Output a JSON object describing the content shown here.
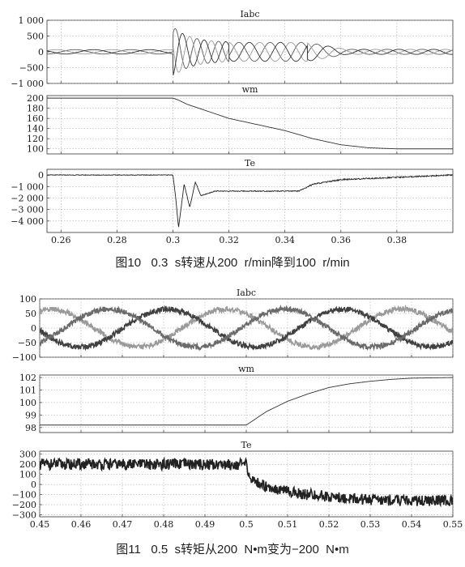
{
  "figures": [
    {
      "caption": "图10   0.3  s转速从200  r/min降到100  r/min",
      "x_ticks": [
        "0.26",
        "0.28",
        "0.3",
        "0.32",
        "0.34",
        "0.36",
        "0.38"
      ],
      "panels": [
        {
          "title": "Iabc",
          "y_ticks": [
            "1 000",
            "500",
            "0",
            "−500",
            "−1 000"
          ]
        },
        {
          "title": "wm",
          "y_ticks": [
            "200",
            "180",
            "160",
            "140",
            "120",
            "100"
          ]
        },
        {
          "title": "Te",
          "y_ticks": [
            "0",
            "−1 000",
            "−2 000",
            "−3 000",
            "−4 000"
          ]
        }
      ]
    },
    {
      "caption": "图11   0.5  s转矩从200  N•m变为−200  N•m",
      "x_ticks": [
        "0.45",
        "0.46",
        "0.47",
        "0.48",
        "0.49",
        "0.5",
        "0.51",
        "0.52",
        "0.53",
        "0.54",
        "0.55"
      ],
      "panels": [
        {
          "title": "Iabc",
          "y_ticks": [
            "100",
            "50",
            "0",
            "−50",
            "−100"
          ]
        },
        {
          "title": "wm",
          "y_ticks": [
            "102",
            "101",
            "100",
            "99",
            "98"
          ]
        },
        {
          "title": "Te",
          "y_ticks": [
            "300",
            "200",
            "100",
            "0",
            "−100",
            "−200",
            "−300"
          ]
        }
      ]
    }
  ],
  "chart_data": [
    {
      "type": "line",
      "title": "Iabc",
      "xlim": [
        0.255,
        0.4
      ],
      "ylim": [
        -1000,
        1000
      ],
      "grid": true,
      "series": [
        {
          "x": [
            0.255,
            0.3,
            0.302,
            0.304,
            0.308,
            0.315,
            0.33,
            0.35,
            0.36,
            0.4
          ],
          "y": [
            100,
            100,
            900,
            -500,
            600,
            400,
            300,
            300,
            100,
            100
          ]
        },
        {
          "x": [
            0.255,
            0.3,
            0.302,
            0.304,
            0.308,
            0.315,
            0.33,
            0.35,
            0.36,
            0.4
          ],
          "y": [
            -100,
            -100,
            -600,
            700,
            -400,
            300,
            300,
            300,
            100,
            100
          ]
        },
        {
          "x": [
            0.255,
            0.3,
            0.302,
            0.304,
            0.308,
            0.315,
            0.33,
            0.35,
            0.36,
            0.4
          ],
          "y": [
            50,
            50,
            -400,
            -300,
            -300,
            -300,
            -300,
            -300,
            -100,
            -100
          ]
        }
      ],
      "colors": [
        "#5a5a5a",
        "#9a9a9a",
        "#303030"
      ]
    },
    {
      "type": "line",
      "title": "wm",
      "xlim": [
        0.255,
        0.4
      ],
      "ylim": [
        90,
        205
      ],
      "grid": true,
      "series": [
        {
          "x": [
            0.255,
            0.3,
            0.302,
            0.305,
            0.32,
            0.34,
            0.35,
            0.36,
            0.37,
            0.38,
            0.39,
            0.4
          ],
          "y": [
            200,
            200,
            196,
            188,
            160,
            136,
            120,
            108,
            102,
            100,
            100,
            100
          ]
        }
      ],
      "colors": [
        "#333333"
      ]
    },
    {
      "type": "line",
      "title": "Te",
      "xlim": [
        0.255,
        0.4
      ],
      "ylim": [
        -5000,
        500
      ],
      "grid": true,
      "series": [
        {
          "x": [
            0.255,
            0.3,
            0.301,
            0.302,
            0.304,
            0.306,
            0.308,
            0.31,
            0.315,
            0.345,
            0.35,
            0.36,
            0.38,
            0.4
          ],
          "y": [
            0,
            0,
            -2000,
            -4600,
            -800,
            -2800,
            -600,
            -1800,
            -1400,
            -1400,
            -800,
            -400,
            -200,
            0
          ]
        }
      ],
      "colors": [
        "#222222"
      ]
    },
    {
      "type": "line",
      "title": "Iabc",
      "xlim": [
        0.45,
        0.55
      ],
      "ylim": [
        -100,
        100
      ],
      "grid": true,
      "series": [
        {
          "x": [
            0.45,
            0.46,
            0.47,
            0.48,
            0.49,
            0.5,
            0.51,
            0.52,
            0.53,
            0.54,
            0.55
          ],
          "y": [
            70,
            20,
            -50,
            -60,
            0,
            60,
            40,
            -30,
            -70,
            -10,
            60
          ]
        },
        {
          "x": [
            0.45,
            0.46,
            0.47,
            0.48,
            0.49,
            0.5,
            0.51,
            0.52,
            0.53,
            0.54,
            0.55
          ],
          "y": [
            -40,
            -70,
            -10,
            50,
            70,
            10,
            -60,
            -60,
            20,
            70,
            20
          ]
        },
        {
          "x": [
            0.45,
            0.46,
            0.47,
            0.48,
            0.49,
            0.5,
            0.51,
            0.52,
            0.53,
            0.54,
            0.55
          ],
          "y": [
            -30,
            50,
            70,
            10,
            -70,
            -70,
            20,
            90,
            50,
            -60,
            -80
          ]
        }
      ],
      "colors": [
        "#9a9a9a",
        "#404040",
        "#6a6a6a"
      ]
    },
    {
      "type": "line",
      "title": "wm",
      "xlim": [
        0.45,
        0.55
      ],
      "ylim": [
        97.6,
        102.2
      ],
      "grid": true,
      "series": [
        {
          "x": [
            0.45,
            0.5,
            0.505,
            0.51,
            0.515,
            0.52,
            0.525,
            0.53,
            0.535,
            0.54,
            0.55
          ],
          "y": [
            98.2,
            98.2,
            99.3,
            100.1,
            100.7,
            101.2,
            101.5,
            101.7,
            101.85,
            101.95,
            102
          ]
        }
      ],
      "colors": [
        "#333333"
      ]
    },
    {
      "type": "line",
      "title": "Te",
      "xlim": [
        0.45,
        0.55
      ],
      "ylim": [
        -320,
        330
      ],
      "grid": true,
      "series": [
        {
          "x": [
            0.45,
            0.5,
            0.501,
            0.505,
            0.51,
            0.515,
            0.52,
            0.525,
            0.53,
            0.54,
            0.55
          ],
          "y": [
            200,
            200,
            50,
            -20,
            -70,
            -100,
            -120,
            -140,
            -150,
            -160,
            -160
          ]
        }
      ],
      "colors": [
        "#222222"
      ]
    }
  ]
}
